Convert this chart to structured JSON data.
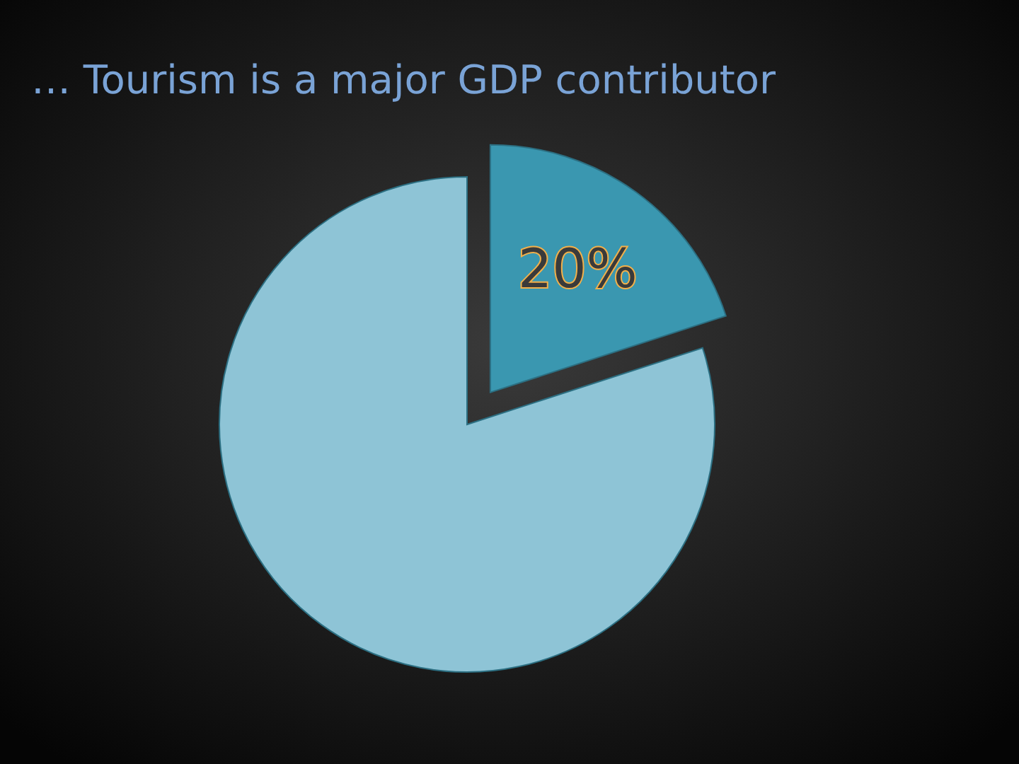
{
  "chart_data": {
    "type": "pie",
    "title": "… Tourism is a major GDP contributor",
    "categories": [
      null,
      null
    ],
    "values": [
      20,
      80
    ],
    "colors": [
      "#3a97b0",
      "#8ec4d6"
    ],
    "value_labels": [
      "20%",
      null
    ]
  }
}
